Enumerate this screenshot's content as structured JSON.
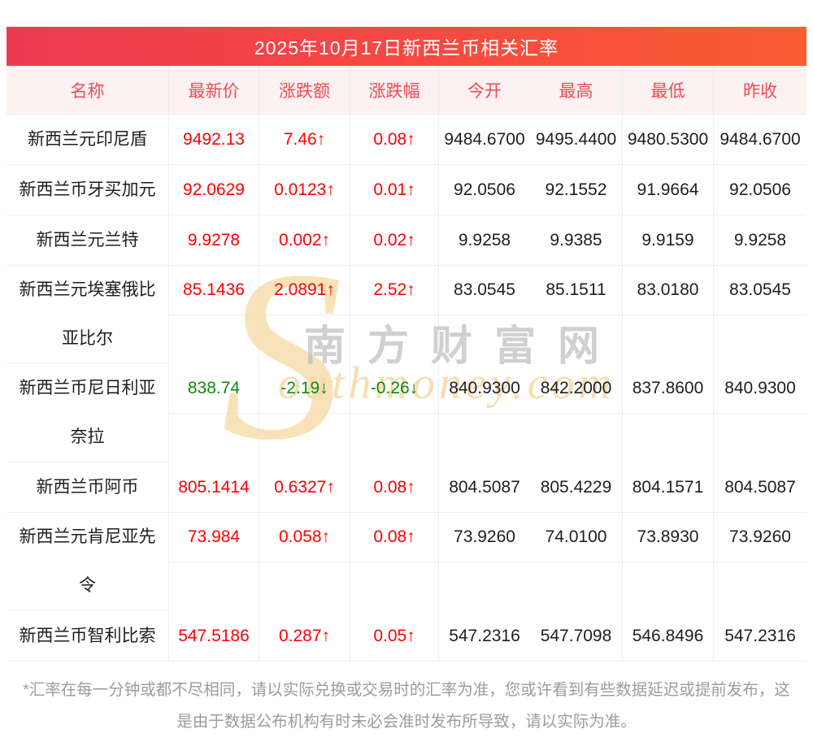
{
  "banner": {
    "title": "2025年10月17日新西兰币相关汇率"
  },
  "table": {
    "columns": [
      "名称",
      "最新价",
      "涨跌额",
      "涨跌幅",
      "今开",
      "最高",
      "最低",
      "昨收"
    ],
    "rows": [
      {
        "name": "新西兰元印尼盾",
        "latest": "9492.13",
        "change": "7.46↑",
        "change_pct": "0.08↑",
        "open": "9484.6700",
        "high": "9495.4400",
        "low": "9480.5300",
        "prev_close": "9484.6700",
        "trend": "up"
      },
      {
        "name": "新西兰币牙买加元",
        "latest": "92.0629",
        "change": "0.0123↑",
        "change_pct": "0.01↑",
        "open": "92.0506",
        "high": "92.1552",
        "low": "91.9664",
        "prev_close": "92.0506",
        "trend": "up"
      },
      {
        "name": "新西兰元兰特",
        "latest": "9.9278",
        "change": "0.002↑",
        "change_pct": "0.02↑",
        "open": "9.9258",
        "high": "9.9385",
        "low": "9.9159",
        "prev_close": "9.9258",
        "trend": "up"
      },
      {
        "name": "新西兰元埃塞俄比亚比尔",
        "latest": "85.1436",
        "change": "2.0891↑",
        "change_pct": "2.52↑",
        "open": "83.0545",
        "high": "85.1511",
        "low": "83.0180",
        "prev_close": "83.0545",
        "trend": "up"
      },
      {
        "name": "新西兰币尼日利亚奈拉",
        "latest": "838.74",
        "change": "-2.19↓",
        "change_pct": "-0.26↓",
        "open": "840.9300",
        "high": "842.2000",
        "low": "837.8600",
        "prev_close": "840.9300",
        "trend": "down"
      },
      {
        "name": "新西兰币阿币",
        "latest": "805.1414",
        "change": "0.6327↑",
        "change_pct": "0.08↑",
        "open": "804.5087",
        "high": "805.4229",
        "low": "804.1571",
        "prev_close": "804.5087",
        "trend": "up"
      },
      {
        "name": "新西兰元肯尼亚先令",
        "latest": "73.984",
        "change": "0.058↑",
        "change_pct": "0.08↑",
        "open": "73.9260",
        "high": "74.0100",
        "low": "73.8930",
        "prev_close": "73.9260",
        "trend": "up"
      },
      {
        "name": "新西兰币智利比索",
        "latest": "547.5186",
        "change": "0.287↑",
        "change_pct": "0.05↑",
        "open": "547.2316",
        "high": "547.7098",
        "low": "546.8496",
        "prev_close": "547.2316",
        "trend": "up"
      }
    ]
  },
  "watermark": {
    "s": "S",
    "en": "outhmoney.com",
    "cn": "南方财富网"
  },
  "footer": {
    "note": "*汇率在每一分钟或都不尽相同，请以实际兑换或交易时的汇率为准，您或许看到有些数据延迟或提前发布，这是由于数据公布机构有时未必会准时发布所导致，请以实际为准。"
  },
  "colors": {
    "banner_gradient_left": "#ee3a50",
    "banner_gradient_right": "#fa5c33",
    "header_bg": "#fdf1f1",
    "header_text": "#f04b55",
    "up": "#fe0000",
    "down": "#0b8b0b",
    "border": "#ededed",
    "footer_text": "#9c9c9c"
  }
}
